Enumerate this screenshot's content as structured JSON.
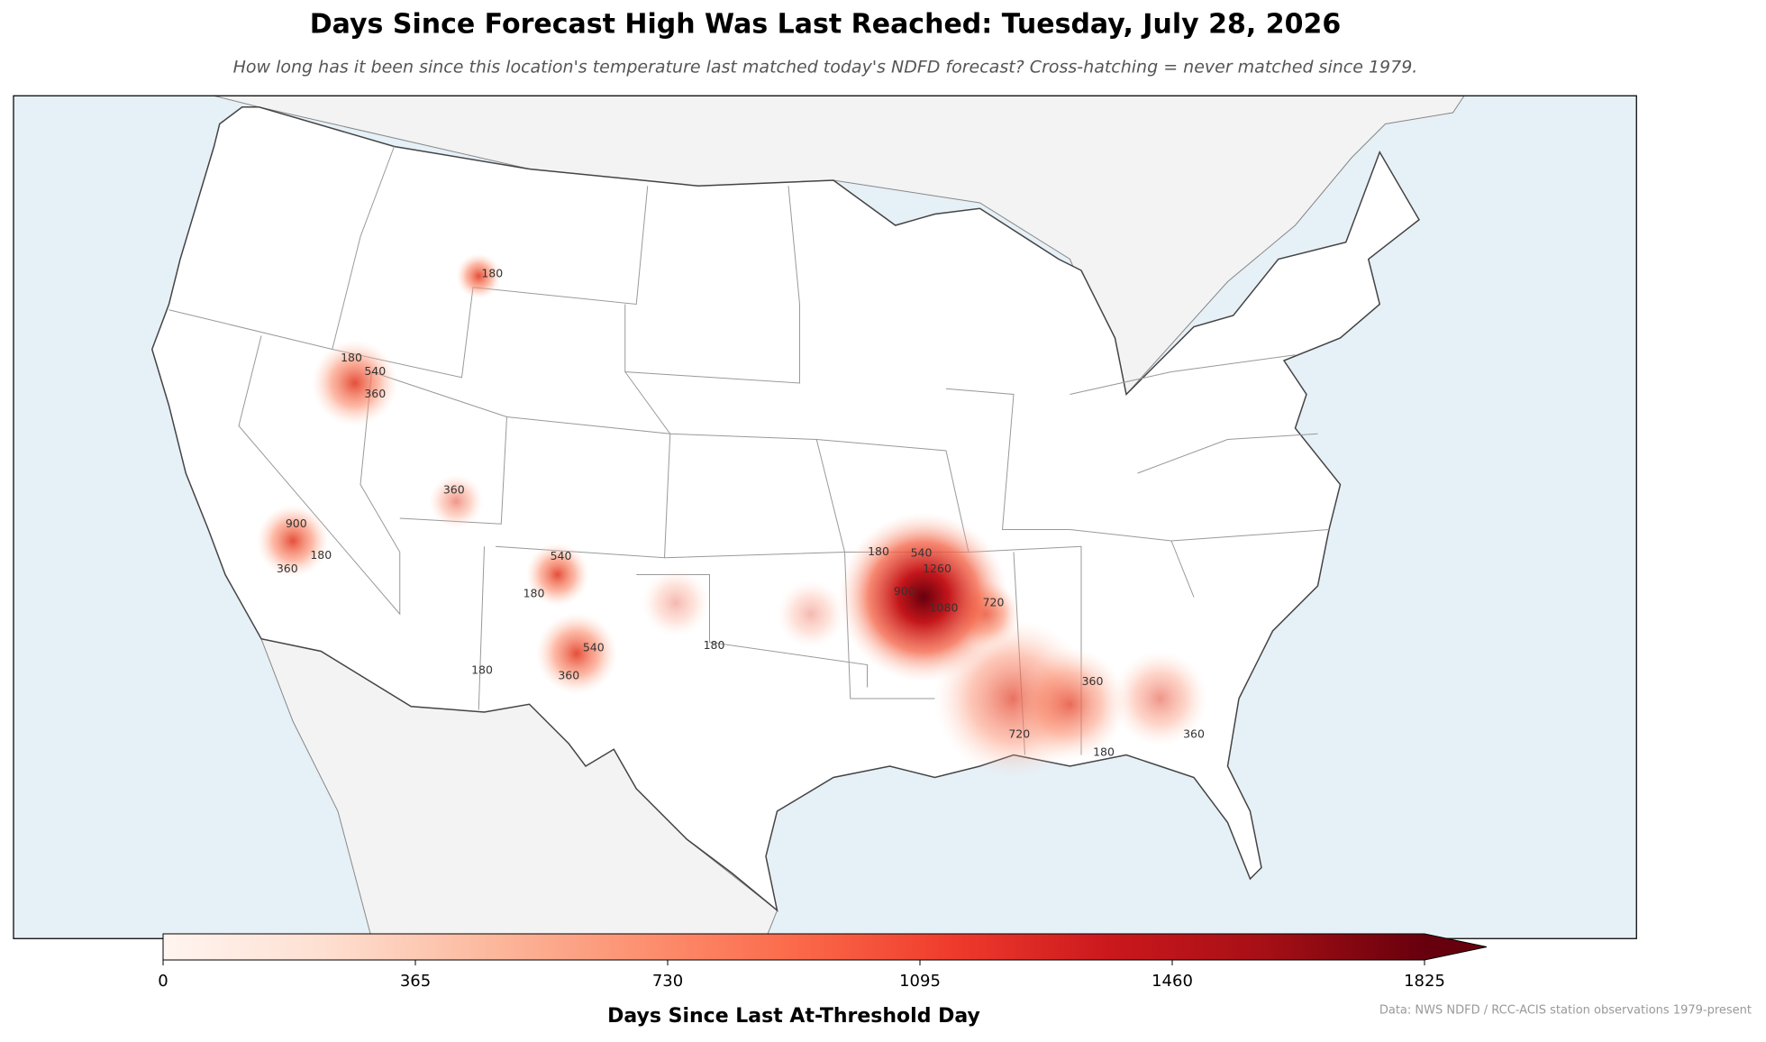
{
  "title": "Days Since Forecast High Was Last Reached: Tuesday, July 28, 2026",
  "subtitle": "How long has it been since this location's temperature last matched today's NDFD forecast? Cross-hatching = never matched since 1979.",
  "contour_labels": [
    180,
    180,
    540,
    360,
    900,
    180,
    360,
    360,
    540,
    180,
    540,
    360,
    180,
    180,
    180,
    540,
    1260,
    900,
    1080,
    720,
    360,
    720,
    180,
    360
  ],
  "colorbar": {
    "lim": [
      0,
      1825
    ],
    "ticks": [
      0,
      365,
      730,
      1095,
      1460,
      1825
    ],
    "label": "Days Since Last At-Threshold Day",
    "colors": [
      "#fff5f0",
      "#fee0d2",
      "#fcbba1",
      "#fc9272",
      "#fb6a4a",
      "#ef3b2c",
      "#cb181d",
      "#a50f15",
      "#67000d"
    ]
  },
  "source": "Data: NWS NDFD / RCC-ACIS station observations 1979-present"
}
